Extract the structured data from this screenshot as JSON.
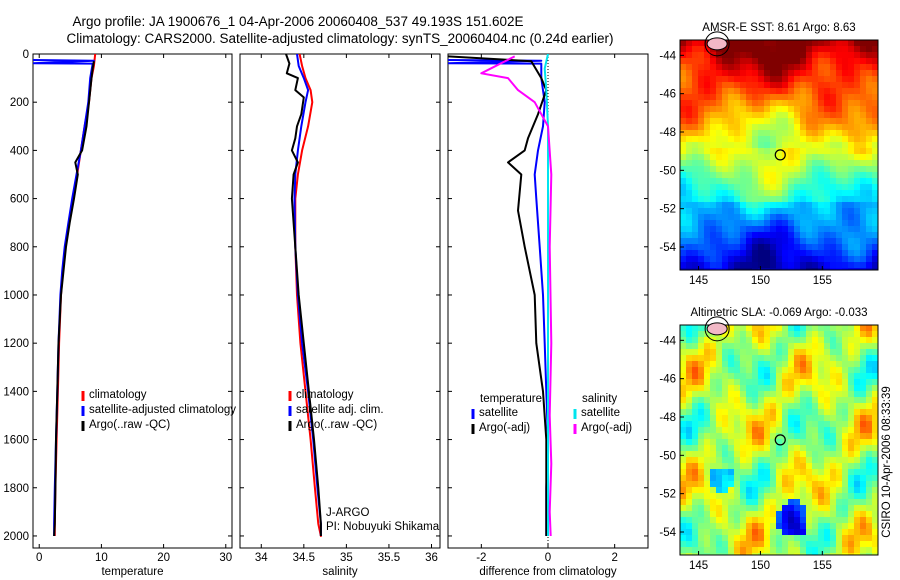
{
  "figure": {
    "title_line1": "Argo profile: JA 1900676_1 04-Apr-2006 20060408_537 49.193S 151.602E",
    "title_line2": "Climatology: CARS2000. Satellite-adjusted climatology: synTS_20060404.nc (0.24d earlier)",
    "side_label": "CSIRO 10-Apr-2006 08:33:39",
    "credit_line1": "J-ARGO",
    "credit_line2": "PI: Nobuyuki Shikama"
  },
  "colors": {
    "climatology": "#ff0000",
    "satellite": "#0000ff",
    "argo": "#000000",
    "satellite_salinity": "#00e5ee",
    "argo_salinity": "#ff00ff"
  },
  "chart_data": [
    {
      "id": "temperature",
      "type": "line",
      "xlabel": "temperature",
      "ylabel": "",
      "xlim": [
        -1,
        31
      ],
      "ylim": [
        2050,
        0
      ],
      "xticks": [
        0,
        10,
        20,
        30
      ],
      "yticks": [
        0,
        200,
        400,
        600,
        800,
        1000,
        1200,
        1400,
        1600,
        1800,
        2000
      ],
      "legend": [
        "climatology",
        "satellite-adjusted climatology",
        "Argo(..raw -QC)"
      ],
      "series": [
        {
          "name": "climatology",
          "color": "#ff0000",
          "x": [
            9.0,
            8.8,
            8.4,
            8.0,
            7.3,
            6.7,
            6.1,
            5.4,
            4.8,
            4.2,
            3.8,
            3.5,
            3.2,
            3.0,
            2.8,
            2.6,
            2.5,
            2.5
          ],
          "y": [
            0,
            50,
            100,
            200,
            300,
            400,
            500,
            600,
            700,
            800,
            900,
            1000,
            1200,
            1400,
            1600,
            1800,
            1950,
            2000
          ]
        },
        {
          "name": "satellite-adjusted climatology",
          "color": "#0000ff",
          "x": [
            -1.0,
            8.8,
            -1.0,
            8.6,
            8.2,
            7.9,
            7.3,
            6.7,
            6.0,
            5.3,
            4.7,
            4.1,
            3.7,
            3.4,
            3.1,
            2.9,
            2.7,
            2.5,
            2.4,
            2.4
          ],
          "y": [
            25,
            28,
            38,
            40,
            100,
            200,
            300,
            400,
            500,
            600,
            700,
            800,
            900,
            1000,
            1200,
            1400,
            1600,
            1800,
            1950,
            2000
          ]
        },
        {
          "name": "Argo(..raw -QC)",
          "color": "#000000",
          "x": [
            8.8,
            8.6,
            8.4,
            8.0,
            7.6,
            6.9,
            5.8,
            6.2,
            5.6,
            4.9,
            4.3,
            3.9,
            3.5,
            3.1,
            2.9,
            2.7,
            2.6,
            2.5,
            2.4,
            2.4
          ],
          "y": [
            30,
            60,
            100,
            200,
            300,
            400,
            450,
            500,
            600,
            700,
            800,
            900,
            1000,
            1200,
            1400,
            1600,
            1800,
            1950,
            2000,
            2000
          ]
        }
      ]
    },
    {
      "id": "salinity",
      "type": "line",
      "xlabel": "salinity",
      "ylabel": "",
      "xlim": [
        33.75,
        36.1
      ],
      "ylim": [
        2050,
        0
      ],
      "xticks": [
        34,
        34.5,
        35,
        35.5,
        36
      ],
      "xticklabels": [
        "34",
        "34.5",
        "35",
        "35.5",
        "36"
      ],
      "yticks": [
        0,
        200,
        400,
        600,
        800,
        1000,
        1200,
        1400,
        1600,
        1800,
        2000
      ],
      "legend": [
        "climatology",
        "satellite adj. clim.",
        "Argo(..raw -QC)"
      ],
      "series": [
        {
          "name": "climatology",
          "color": "#ff0000",
          "x": [
            34.45,
            34.48,
            34.52,
            34.58,
            34.6,
            34.55,
            34.48,
            34.43,
            34.4,
            34.4,
            34.42,
            34.46,
            34.52,
            34.58,
            34.63,
            34.67,
            34.7,
            34.71
          ],
          "y": [
            0,
            50,
            100,
            150,
            200,
            300,
            400,
            500,
            600,
            800,
            1000,
            1200,
            1400,
            1600,
            1800,
            1950,
            2000,
            2000
          ]
        },
        {
          "name": "satellite adj. clim.",
          "color": "#0000ff",
          "x": [
            34.42,
            34.44,
            34.5,
            34.55,
            34.52,
            34.47,
            34.43,
            34.4,
            34.39,
            34.4,
            34.43,
            34.48,
            34.55,
            34.61,
            34.66,
            34.7,
            34.7
          ],
          "y": [
            0,
            50,
            100,
            150,
            200,
            300,
            400,
            500,
            600,
            800,
            1000,
            1200,
            1400,
            1600,
            1800,
            1950,
            2000
          ]
        },
        {
          "name": "Argo(..raw -QC)",
          "color": "#000000",
          "x": [
            34.29,
            34.33,
            34.3,
            34.43,
            34.4,
            34.5,
            34.47,
            34.42,
            34.4,
            34.36,
            34.43,
            34.38,
            34.36,
            34.38,
            34.4,
            34.44,
            34.5,
            34.56,
            34.62,
            34.67,
            34.7,
            34.7
          ],
          "y": [
            0,
            40,
            80,
            100,
            150,
            180,
            250,
            300,
            350,
            400,
            450,
            500,
            600,
            700,
            800,
            1000,
            1200,
            1400,
            1600,
            1800,
            1950,
            2000
          ]
        }
      ]
    },
    {
      "id": "difference",
      "type": "line",
      "xlabel": "difference from climatology",
      "ylabel": "",
      "xlim": [
        -3.0,
        3.0
      ],
      "ylim": [
        2050,
        0
      ],
      "xticks": [
        -2,
        0,
        2
      ],
      "yticks": [
        0,
        200,
        400,
        600,
        800,
        1000,
        1200,
        1400,
        1600,
        1800,
        2000
      ],
      "legend_left_title": "temperature",
      "legend_right_title": "salinity",
      "legend": [
        "satellite",
        "Argo(-adj)",
        "satellite",
        "Argo(-adj)"
      ],
      "series": [
        {
          "name": "temperature satellite",
          "color": "#0000ff",
          "x": [
            -3.0,
            -0.2,
            -3.0,
            -0.2,
            -0.2,
            -0.1,
            -0.15,
            -0.3,
            -0.4,
            -0.35,
            -0.25,
            -0.15,
            -0.1,
            -0.05,
            0.0,
            -0.05,
            -0.05
          ],
          "y": [
            25,
            28,
            38,
            40,
            100,
            200,
            300,
            400,
            500,
            600,
            800,
            1000,
            1200,
            1400,
            1600,
            1800,
            2000
          ]
        },
        {
          "name": "temperature Argo(-adj)",
          "color": "#000000",
          "x": [
            -3.0,
            -0.5,
            -0.2,
            -0.05,
            -0.3,
            -0.6,
            -0.7,
            -1.2,
            -0.8,
            -0.9,
            -0.7,
            -0.4,
            -0.35,
            -0.15,
            -0.05,
            -0.05
          ],
          "y": [
            10,
            30,
            100,
            150,
            250,
            350,
            400,
            450,
            500,
            650,
            800,
            1000,
            1200,
            1400,
            1600,
            2000
          ]
        },
        {
          "name": "salinity satellite",
          "color": "#00e5ee",
          "x": [
            0.0,
            -0.1,
            -0.05,
            0.0,
            0.0,
            0.0,
            0.0,
            0.0,
            0.0,
            0.0,
            0.0
          ],
          "y": [
            0,
            60,
            150,
            300,
            600,
            900,
            1200,
            1500,
            1800,
            1950,
            2000
          ]
        },
        {
          "name": "salinity Argo(-adj)",
          "color": "#ff00ff",
          "x": [
            -1.0,
            -2.0,
            -1.2,
            -0.9,
            -0.4,
            0.0,
            0.1,
            0.05,
            0.1,
            0.05,
            0.1,
            0.05,
            0.08
          ],
          "y": [
            10,
            80,
            100,
            150,
            200,
            300,
            500,
            800,
            1200,
            1500,
            1700,
            1900,
            2000
          ]
        }
      ]
    },
    {
      "id": "sst_map",
      "type": "heatmap",
      "title": "AMSR-E SST: 8.61 Argo: 8.63",
      "xlim": [
        143.5,
        159.5
      ],
      "ylim": [
        -55.2,
        -43.2
      ],
      "xticks": [
        145,
        150,
        155
      ],
      "yticks": [
        -44,
        -46,
        -48,
        -50,
        -52,
        -54
      ],
      "marker": {
        "lon": 151.602,
        "lat": -49.193
      }
    },
    {
      "id": "sla_map",
      "type": "heatmap",
      "title": "Altimetric SLA: -0.069 Argo: -0.033",
      "xlim": [
        143.5,
        159.5
      ],
      "ylim": [
        -55.2,
        -43.2
      ],
      "xticks": [
        145,
        150,
        155
      ],
      "yticks": [
        -44,
        -46,
        -48,
        -50,
        -52,
        -54
      ],
      "marker": {
        "lon": 151.602,
        "lat": -49.193
      }
    }
  ]
}
